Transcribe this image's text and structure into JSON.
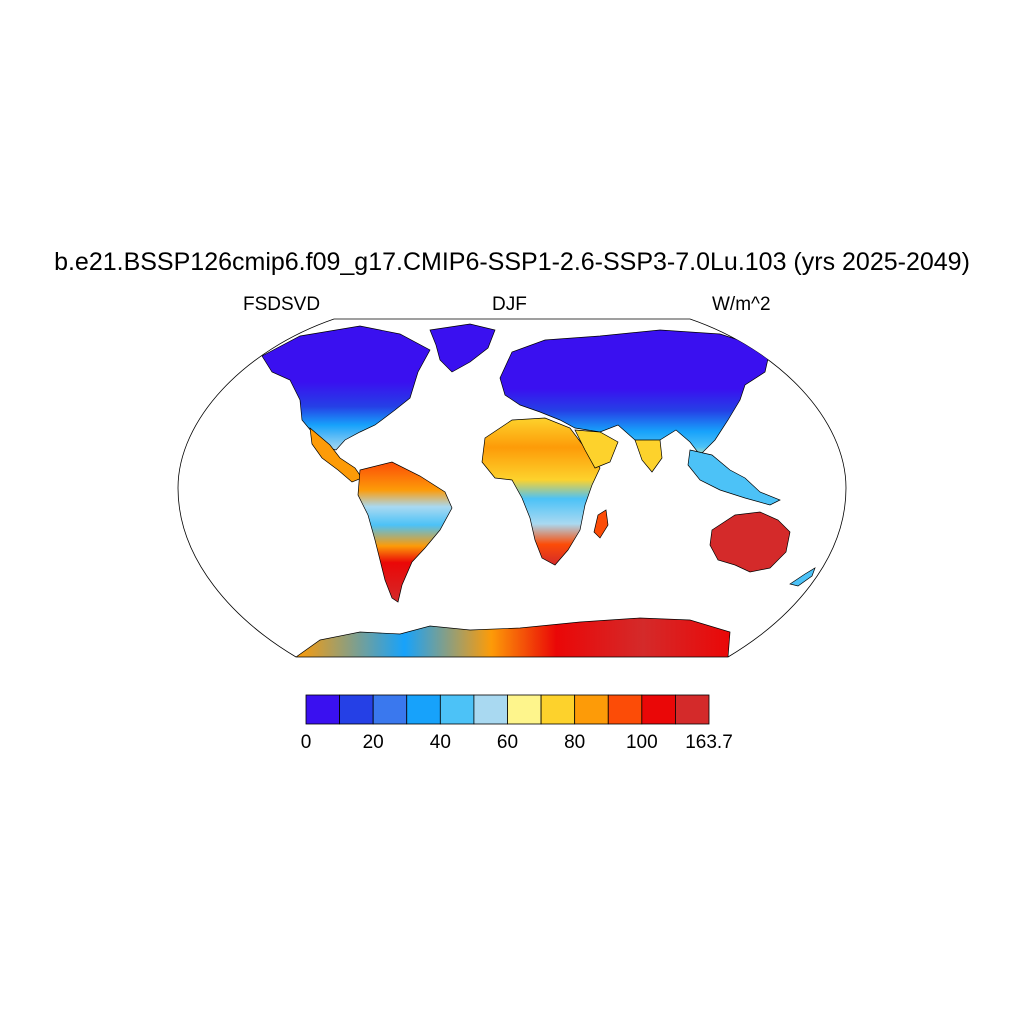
{
  "title": "b.e21.BSSP126cmip6.f09_g17.CMIP6-SSP1-2.6-SSP3-7.0Lu.103 (yrs 2025-2049)",
  "left_label": "FSDSVD",
  "center_label": "DJF",
  "right_label": "W/m^2",
  "colorbar": {
    "colors": [
      "#3a10f0",
      "#2540e6",
      "#3a78ee",
      "#17a2fb",
      "#4cc2f7",
      "#a9d9f1",
      "#fef58c",
      "#fdd22c",
      "#fd9b08",
      "#fc4c07",
      "#ea0707",
      "#d42a2a"
    ],
    "tick_labels": [
      "0",
      "20",
      "40",
      "60",
      "80",
      "100",
      "163.7"
    ]
  },
  "map": {
    "projection": "Robinson",
    "ocean_color": "#ffffff",
    "coastline_color": "#000000"
  }
}
